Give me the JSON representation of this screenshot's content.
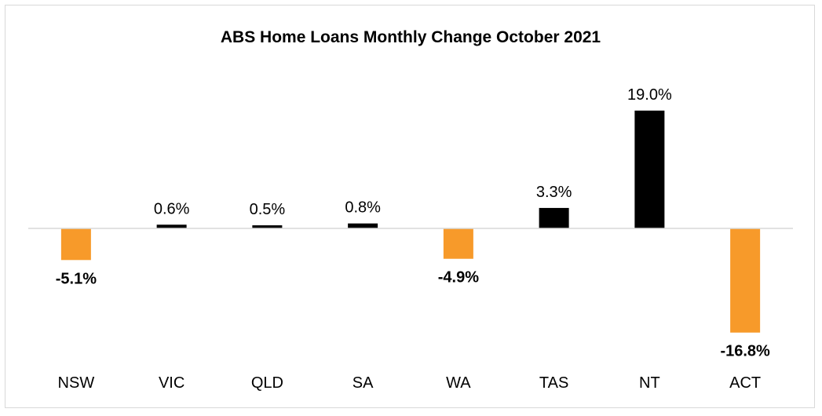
{
  "chart_data": {
    "type": "bar",
    "title": "ABS Home Loans Monthly Change October 2021",
    "categories": [
      "NSW",
      "VIC",
      "QLD",
      "SA",
      "WA",
      "TAS",
      "NT",
      "ACT"
    ],
    "values": [
      -5.1,
      0.6,
      0.5,
      0.8,
      -4.9,
      3.3,
      19.0,
      -16.8
    ],
    "data_labels": [
      "-5.1%",
      "0.6%",
      "0.5%",
      "0.8%",
      "-4.9%",
      "3.3%",
      "19.0%",
      "-16.8%"
    ],
    "xlabel": "",
    "ylabel": "",
    "grid": false,
    "legend": "none",
    "colors": {
      "positive": "#000000",
      "negative": "#f79a2a",
      "axis": "#d9d9d9"
    }
  }
}
